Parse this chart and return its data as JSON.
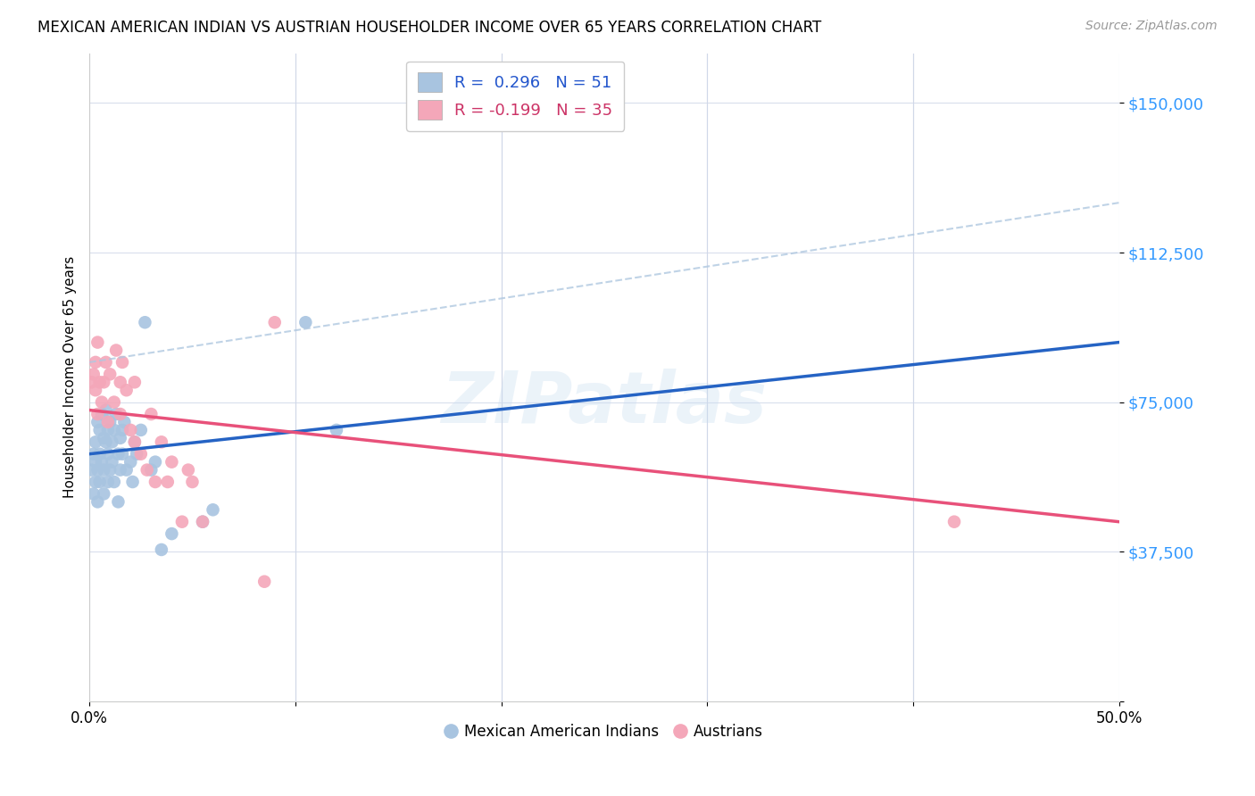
{
  "title": "MEXICAN AMERICAN INDIAN VS AUSTRIAN HOUSEHOLDER INCOME OVER 65 YEARS CORRELATION CHART",
  "source": "Source: ZipAtlas.com",
  "ylabel": "Householder Income Over 65 years",
  "yticks": [
    0,
    37500,
    75000,
    112500,
    150000
  ],
  "ytick_labels": [
    "",
    "$37,500",
    "$75,000",
    "$112,500",
    "$150,000"
  ],
  "xlim": [
    0.0,
    0.5
  ],
  "ylim": [
    0,
    162500
  ],
  "blue_r": "0.296",
  "blue_n": "51",
  "pink_r": "-0.199",
  "pink_n": "35",
  "blue_color": "#a8c4e0",
  "pink_color": "#f4a7b9",
  "blue_line_color": "#2563c4",
  "pink_line_color": "#e8517a",
  "blue_dash_color": "#b0c8e0",
  "watermark": "ZIPatlas",
  "blue_x": [
    0.001,
    0.002,
    0.002,
    0.003,
    0.003,
    0.003,
    0.004,
    0.004,
    0.004,
    0.005,
    0.005,
    0.005,
    0.006,
    0.006,
    0.007,
    0.007,
    0.007,
    0.008,
    0.008,
    0.009,
    0.009,
    0.009,
    0.01,
    0.01,
    0.011,
    0.011,
    0.012,
    0.012,
    0.013,
    0.014,
    0.014,
    0.015,
    0.015,
    0.016,
    0.016,
    0.017,
    0.018,
    0.02,
    0.021,
    0.022,
    0.023,
    0.025,
    0.027,
    0.03,
    0.032,
    0.035,
    0.04,
    0.055,
    0.06,
    0.105,
    0.12
  ],
  "blue_y": [
    58000,
    62000,
    52000,
    65000,
    60000,
    55000,
    70000,
    58000,
    50000,
    68000,
    62000,
    55000,
    72000,
    60000,
    66000,
    58000,
    52000,
    73000,
    65000,
    68000,
    62000,
    55000,
    70000,
    58000,
    65000,
    60000,
    68000,
    55000,
    72000,
    62000,
    50000,
    66000,
    58000,
    68000,
    62000,
    70000,
    58000,
    60000,
    55000,
    65000,
    62000,
    68000,
    95000,
    58000,
    60000,
    38000,
    42000,
    45000,
    48000,
    95000,
    68000
  ],
  "pink_x": [
    0.001,
    0.002,
    0.003,
    0.003,
    0.004,
    0.004,
    0.005,
    0.006,
    0.007,
    0.008,
    0.009,
    0.01,
    0.012,
    0.013,
    0.015,
    0.015,
    0.016,
    0.018,
    0.02,
    0.022,
    0.022,
    0.025,
    0.028,
    0.03,
    0.032,
    0.035,
    0.038,
    0.04,
    0.045,
    0.048,
    0.05,
    0.055,
    0.085,
    0.09,
    0.42
  ],
  "pink_y": [
    80000,
    82000,
    78000,
    85000,
    72000,
    90000,
    80000,
    75000,
    80000,
    85000,
    70000,
    82000,
    75000,
    88000,
    80000,
    72000,
    85000,
    78000,
    68000,
    80000,
    65000,
    62000,
    58000,
    72000,
    55000,
    65000,
    55000,
    60000,
    45000,
    58000,
    55000,
    45000,
    30000,
    95000,
    45000
  ]
}
